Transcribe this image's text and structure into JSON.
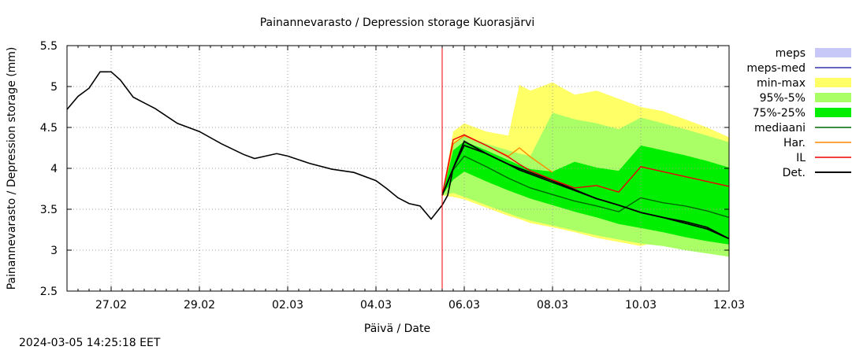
{
  "footer_timestamp": "2024-03-05 14:25:18 EET",
  "chart_data": {
    "type": "area",
    "title": "Painannevarasto / Depression storage   Kuorasjärvi",
    "xlabel": "Päivä / Date",
    "ylabel": "Painannevarasto / Depression storage (mm)",
    "ylim": [
      2.5,
      5.5
    ],
    "yticks": [
      "2.5",
      "3",
      "3.5",
      "4",
      "4.5",
      "5",
      "5.5"
    ],
    "xlim": [
      "2024-02-26 00:00",
      "2024-03-12 00:00"
    ],
    "xticks": [
      {
        "date": "2024-02-27",
        "label": "27.02"
      },
      {
        "date": "2024-02-29",
        "label": "29.02"
      },
      {
        "date": "2024-03-02",
        "label": "02.03"
      },
      {
        "date": "2024-03-04",
        "label": "04.03"
      },
      {
        "date": "2024-03-06",
        "label": "06.03"
      },
      {
        "date": "2024-03-08",
        "label": "08.03"
      },
      {
        "date": "2024-03-10",
        "label": "10.03"
      },
      {
        "date": "2024-03-12",
        "label": "12.03"
      }
    ],
    "grid": true,
    "legend_placement": "right",
    "forecast_start": "2024-03-05 12:00",
    "legend": [
      {
        "label": "meps",
        "color": "#c8c8f8",
        "kind": "box"
      },
      {
        "label": "meps-med",
        "color": "#3333aa",
        "kind": "line"
      },
      {
        "label": "min-max",
        "color": "#ffff66",
        "kind": "box"
      },
      {
        "label": "95%-5%",
        "color": "#aaff66",
        "kind": "box"
      },
      {
        "label": "75%-25%",
        "color": "#00ee00",
        "kind": "box"
      },
      {
        "label": "mediaani",
        "color": "#006600",
        "kind": "line"
      },
      {
        "label": "Har.",
        "color": "#ff8800",
        "kind": "line"
      },
      {
        "label": "IL",
        "color": "#ee0000",
        "kind": "line"
      },
      {
        "label": "Det.",
        "color": "#000000",
        "kind": "line"
      }
    ],
    "observed": {
      "name": "Det.",
      "x": [
        "2024-02-26 00:00",
        "2024-02-26 06:00",
        "2024-02-26 12:00",
        "2024-02-26 18:00",
        "2024-02-27 00:00",
        "2024-02-27 05:00",
        "2024-02-27 12:00",
        "2024-02-27 18:00",
        "2024-02-28 00:00",
        "2024-02-28 12:00",
        "2024-02-29 00:00",
        "2024-02-29 12:00",
        "2024-03-01 00:00",
        "2024-03-01 06:00",
        "2024-03-01 12:00",
        "2024-03-01 18:00",
        "2024-03-02 00:00",
        "2024-03-02 12:00",
        "2024-03-03 00:00",
        "2024-03-03 12:00",
        "2024-03-04 00:00",
        "2024-03-04 06:00",
        "2024-03-04 12:00",
        "2024-03-04 18:00",
        "2024-03-05 00:00",
        "2024-03-05 06:00",
        "2024-03-05 12:00",
        "2024-03-05 15:00",
        "2024-03-05 18:00",
        "2024-03-06 00:00",
        "2024-03-06 12:00",
        "2024-03-07 00:00",
        "2024-03-07 12:00",
        "2024-03-08 00:00",
        "2024-03-08 12:00",
        "2024-03-09 00:00",
        "2024-03-09 12:00",
        "2024-03-10 00:00",
        "2024-03-10 12:00",
        "2024-03-11 00:00",
        "2024-03-11 12:00",
        "2024-03-12 00:00"
      ],
      "y": [
        4.72,
        4.88,
        4.98,
        5.18,
        5.18,
        5.08,
        4.87,
        4.8,
        4.73,
        4.55,
        4.45,
        4.3,
        4.17,
        4.12,
        4.15,
        4.18,
        4.15,
        4.06,
        3.99,
        3.95,
        3.85,
        3.75,
        3.64,
        3.57,
        3.54,
        3.38,
        3.55,
        3.67,
        4.0,
        4.28,
        4.18,
        4.05,
        3.95,
        3.85,
        3.74,
        3.63,
        3.55,
        3.46,
        3.4,
        3.35,
        3.28,
        3.14
      ]
    },
    "forecast_x": [
      "2024-03-05 12:00",
      "2024-03-05 18:00",
      "2024-03-06 00:00",
      "2024-03-06 12:00",
      "2024-03-07 00:00",
      "2024-03-07 06:00",
      "2024-03-07 12:00",
      "2024-03-08 00:00",
      "2024-03-08 12:00",
      "2024-03-09 00:00",
      "2024-03-09 12:00",
      "2024-03-10 00:00",
      "2024-03-10 12:00",
      "2024-03-11 00:00",
      "2024-03-11 12:00",
      "2024-03-12 00:00"
    ],
    "bands": [
      {
        "name": "min-max",
        "color": "#ffff66",
        "lower": [
          3.67,
          3.65,
          3.62,
          3.52,
          3.42,
          3.38,
          3.33,
          3.28,
          3.22,
          3.15,
          3.1,
          3.05,
          3.12,
          3.1,
          3.06,
          3.02
        ],
        "upper": [
          3.67,
          4.45,
          4.55,
          4.45,
          4.4,
          5.02,
          4.95,
          5.05,
          4.9,
          4.95,
          4.85,
          4.75,
          4.7,
          4.6,
          4.5,
          4.38
        ]
      },
      {
        "name": "95%-5%",
        "color": "#aaff66",
        "lower": [
          3.67,
          3.7,
          3.65,
          3.55,
          3.45,
          3.4,
          3.36,
          3.3,
          3.24,
          3.18,
          3.13,
          3.08,
          3.05,
          3.0,
          2.96,
          2.92
        ],
        "upper": [
          3.67,
          4.3,
          4.4,
          4.3,
          4.22,
          4.18,
          4.15,
          4.68,
          4.6,
          4.55,
          4.48,
          4.62,
          4.55,
          4.48,
          4.4,
          4.32
        ]
      },
      {
        "name": "75%-25%",
        "color": "#00ee00",
        "lower": [
          3.67,
          3.86,
          3.96,
          3.84,
          3.73,
          3.68,
          3.63,
          3.55,
          3.47,
          3.4,
          3.32,
          3.27,
          3.22,
          3.16,
          3.11,
          3.07
        ],
        "upper": [
          3.67,
          4.22,
          4.33,
          4.22,
          4.1,
          4.04,
          3.99,
          3.96,
          4.08,
          4.01,
          3.97,
          4.28,
          4.22,
          4.16,
          4.09,
          4.01
        ]
      }
    ],
    "series": [
      {
        "name": "mediaani",
        "color": "#006600",
        "y": [
          3.67,
          3.98,
          4.15,
          4.02,
          3.88,
          3.82,
          3.76,
          3.68,
          3.6,
          3.54,
          3.47,
          3.64,
          3.58,
          3.54,
          3.48,
          3.4
        ]
      },
      {
        "name": "Har.",
        "color": "#ff8800",
        "x": [
          "2024-03-05 12:00",
          "2024-03-05 18:00",
          "2024-03-06 00:00",
          "2024-03-06 12:00",
          "2024-03-07 00:00",
          "2024-03-07 06:00",
          "2024-03-07 12:00",
          "2024-03-08 00:00"
        ],
        "y": [
          3.67,
          4.3,
          4.4,
          4.28,
          4.15,
          4.25,
          4.14,
          3.95
        ]
      },
      {
        "name": "IL",
        "color": "#ee0000",
        "y": [
          3.67,
          4.35,
          4.41,
          4.28,
          4.14,
          4.05,
          3.97,
          3.86,
          3.76,
          3.79,
          3.71,
          4.02,
          3.96,
          3.9,
          3.84,
          3.78
        ]
      },
      {
        "name": "Det.",
        "color": "#000000",
        "y": [
          3.67,
          4.0,
          4.33,
          4.18,
          4.05,
          3.98,
          3.93,
          3.83,
          3.73,
          3.63,
          3.55,
          3.46,
          3.4,
          3.33,
          3.26,
          3.14
        ]
      }
    ]
  }
}
